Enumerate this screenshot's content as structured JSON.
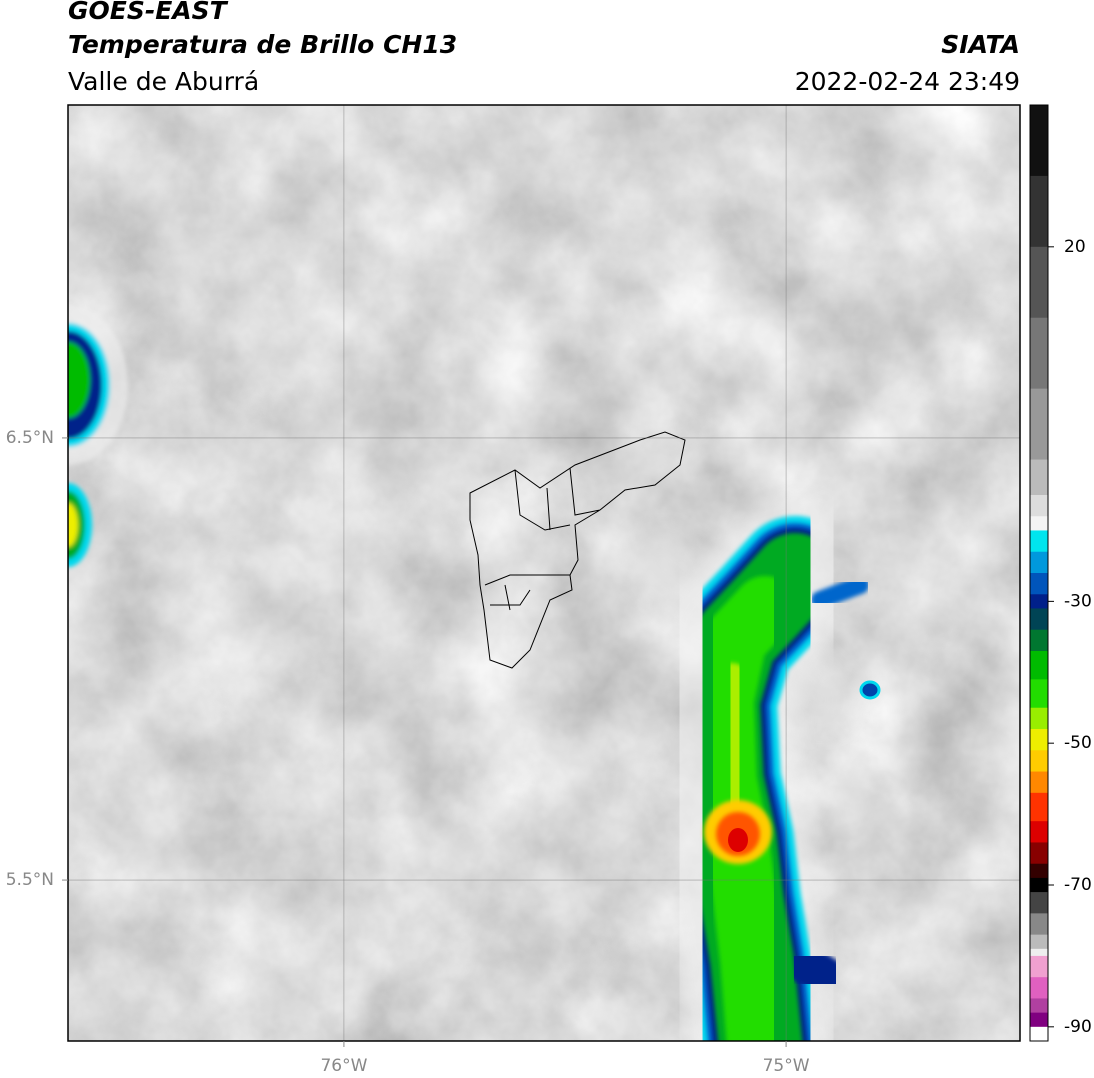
{
  "header": {
    "title": "GOES-EAST",
    "subtitle": "Temperatura de Brillo CH13",
    "region": "Valle de Aburrá",
    "source": "SIATA",
    "datetime": "2022-02-24 23:49"
  },
  "map": {
    "xlim": [
      -76.624,
      -74.471
    ],
    "ylim": [
      5.136,
      7.253
    ],
    "xticks": [
      {
        "value": -76,
        "label": "76°W"
      },
      {
        "value": -75,
        "label": "75°W"
      }
    ],
    "yticks": [
      {
        "value": 6.5,
        "label": "6.5°N"
      },
      {
        "value": 5.5,
        "label": "5.5°N"
      }
    ],
    "grid": true
  },
  "colorbar": {
    "lim": [
      -92,
      40
    ],
    "ticks": [
      20,
      -30,
      -50,
      -70,
      -90
    ],
    "levels": [
      40,
      30,
      20,
      10,
      0,
      -10,
      -15,
      -18,
      -20,
      -23,
      -26,
      -29,
      -31,
      -34,
      -37,
      -41,
      -45,
      -48,
      -51,
      -54,
      -57,
      -61,
      -64,
      -67,
      -69,
      -71,
      -74,
      -77,
      -79,
      -80,
      -83,
      -86,
      -88,
      -90
    ],
    "colors": [
      "#111111",
      "#333333",
      "#555555",
      "#777777",
      "#999999",
      "#bbbbbb",
      "#dddddd",
      "#f4f4f4",
      "#00e5ee",
      "#0099dd",
      "#0055bb",
      "#00208a",
      "#004455",
      "#007730",
      "#00bb00",
      "#22dd00",
      "#99ee00",
      "#eeee00",
      "#ffcc00",
      "#ff8800",
      "#ff3300",
      "#dd0000",
      "#880000",
      "#330000",
      "#000000",
      "#444444",
      "#888888",
      "#bbbbbb",
      "#eeeeee",
      "#f0a0d0",
      "#e060c0",
      "#b040a0",
      "#800080",
      "#ffffff"
    ]
  }
}
